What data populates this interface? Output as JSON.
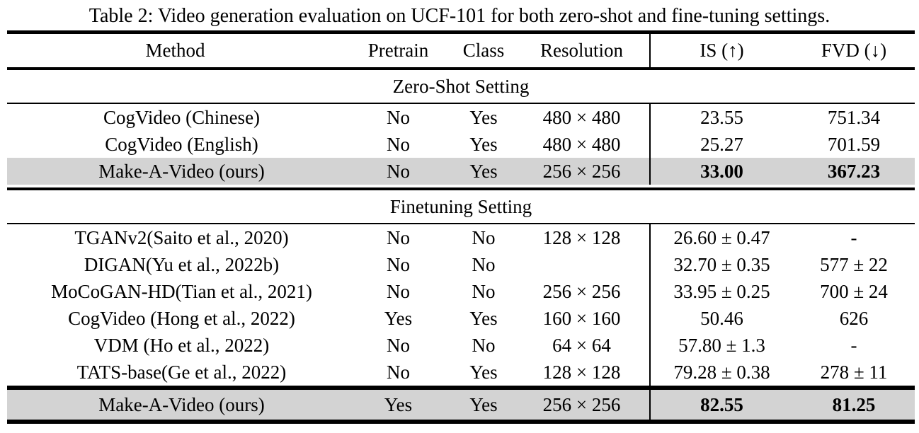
{
  "caption": "Table 2: Video generation evaluation on UCF-101 for both zero-shot and fine-tuning settings.",
  "columns": [
    "Method",
    "Pretrain",
    "Class",
    "Resolution",
    "IS (↑)",
    "FVD (↓)"
  ],
  "sections": [
    {
      "label": "Zero-Shot Setting",
      "rows": [
        {
          "cells": [
            "CogVideo (Chinese)",
            "No",
            "Yes",
            "480 × 480",
            "23.55",
            "751.34"
          ],
          "highlight": false
        },
        {
          "cells": [
            "CogVideo (English)",
            "No",
            "Yes",
            "480 × 480",
            "25.27",
            "701.59"
          ],
          "highlight": false
        },
        {
          "cells": [
            "Make-A-Video (ours)",
            "No",
            "Yes",
            "256 × 256",
            "33.00",
            "367.23"
          ],
          "highlight": true,
          "bold_metrics": true
        }
      ]
    },
    {
      "label": "Finetuning Setting",
      "rows": [
        {
          "cells": [
            "TGANv2(Saito et al., 2020)",
            "No",
            "No",
            "128 × 128",
            "26.60 ± 0.47",
            "-"
          ],
          "highlight": false
        },
        {
          "cells": [
            "DIGAN(Yu et al., 2022b)",
            "No",
            "No",
            "",
            "32.70 ± 0.35",
            "577 ± 22"
          ],
          "highlight": false
        },
        {
          "cells": [
            "MoCoGAN-HD(Tian et al., 2021)",
            "No",
            "No",
            "256 × 256",
            "33.95 ± 0.25",
            "700 ± 24"
          ],
          "highlight": false
        },
        {
          "cells": [
            "CogVideo (Hong et al., 2022)",
            "Yes",
            "Yes",
            "160 × 160",
            "50.46",
            "626"
          ],
          "highlight": false
        },
        {
          "cells": [
            "VDM (Ho et al., 2022)",
            "No",
            "No",
            "64 × 64",
            "57.80 ± 1.3",
            "-"
          ],
          "highlight": false
        },
        {
          "cells": [
            "TATS-base(Ge et al., 2022)",
            "No",
            "Yes",
            "128 × 128",
            "79.28 ± 0.38",
            "278 ± 11"
          ],
          "highlight": false
        },
        {
          "cells": [
            "Make-A-Video (ours)",
            "Yes",
            "Yes",
            "256 × 256",
            "82.55",
            "81.25"
          ],
          "highlight": true,
          "bold_metrics": true
        }
      ]
    }
  ],
  "colors": {
    "highlight_row": "#d3d3d3",
    "rule": "#000000",
    "text": "#000000",
    "background": "#ffffff"
  }
}
